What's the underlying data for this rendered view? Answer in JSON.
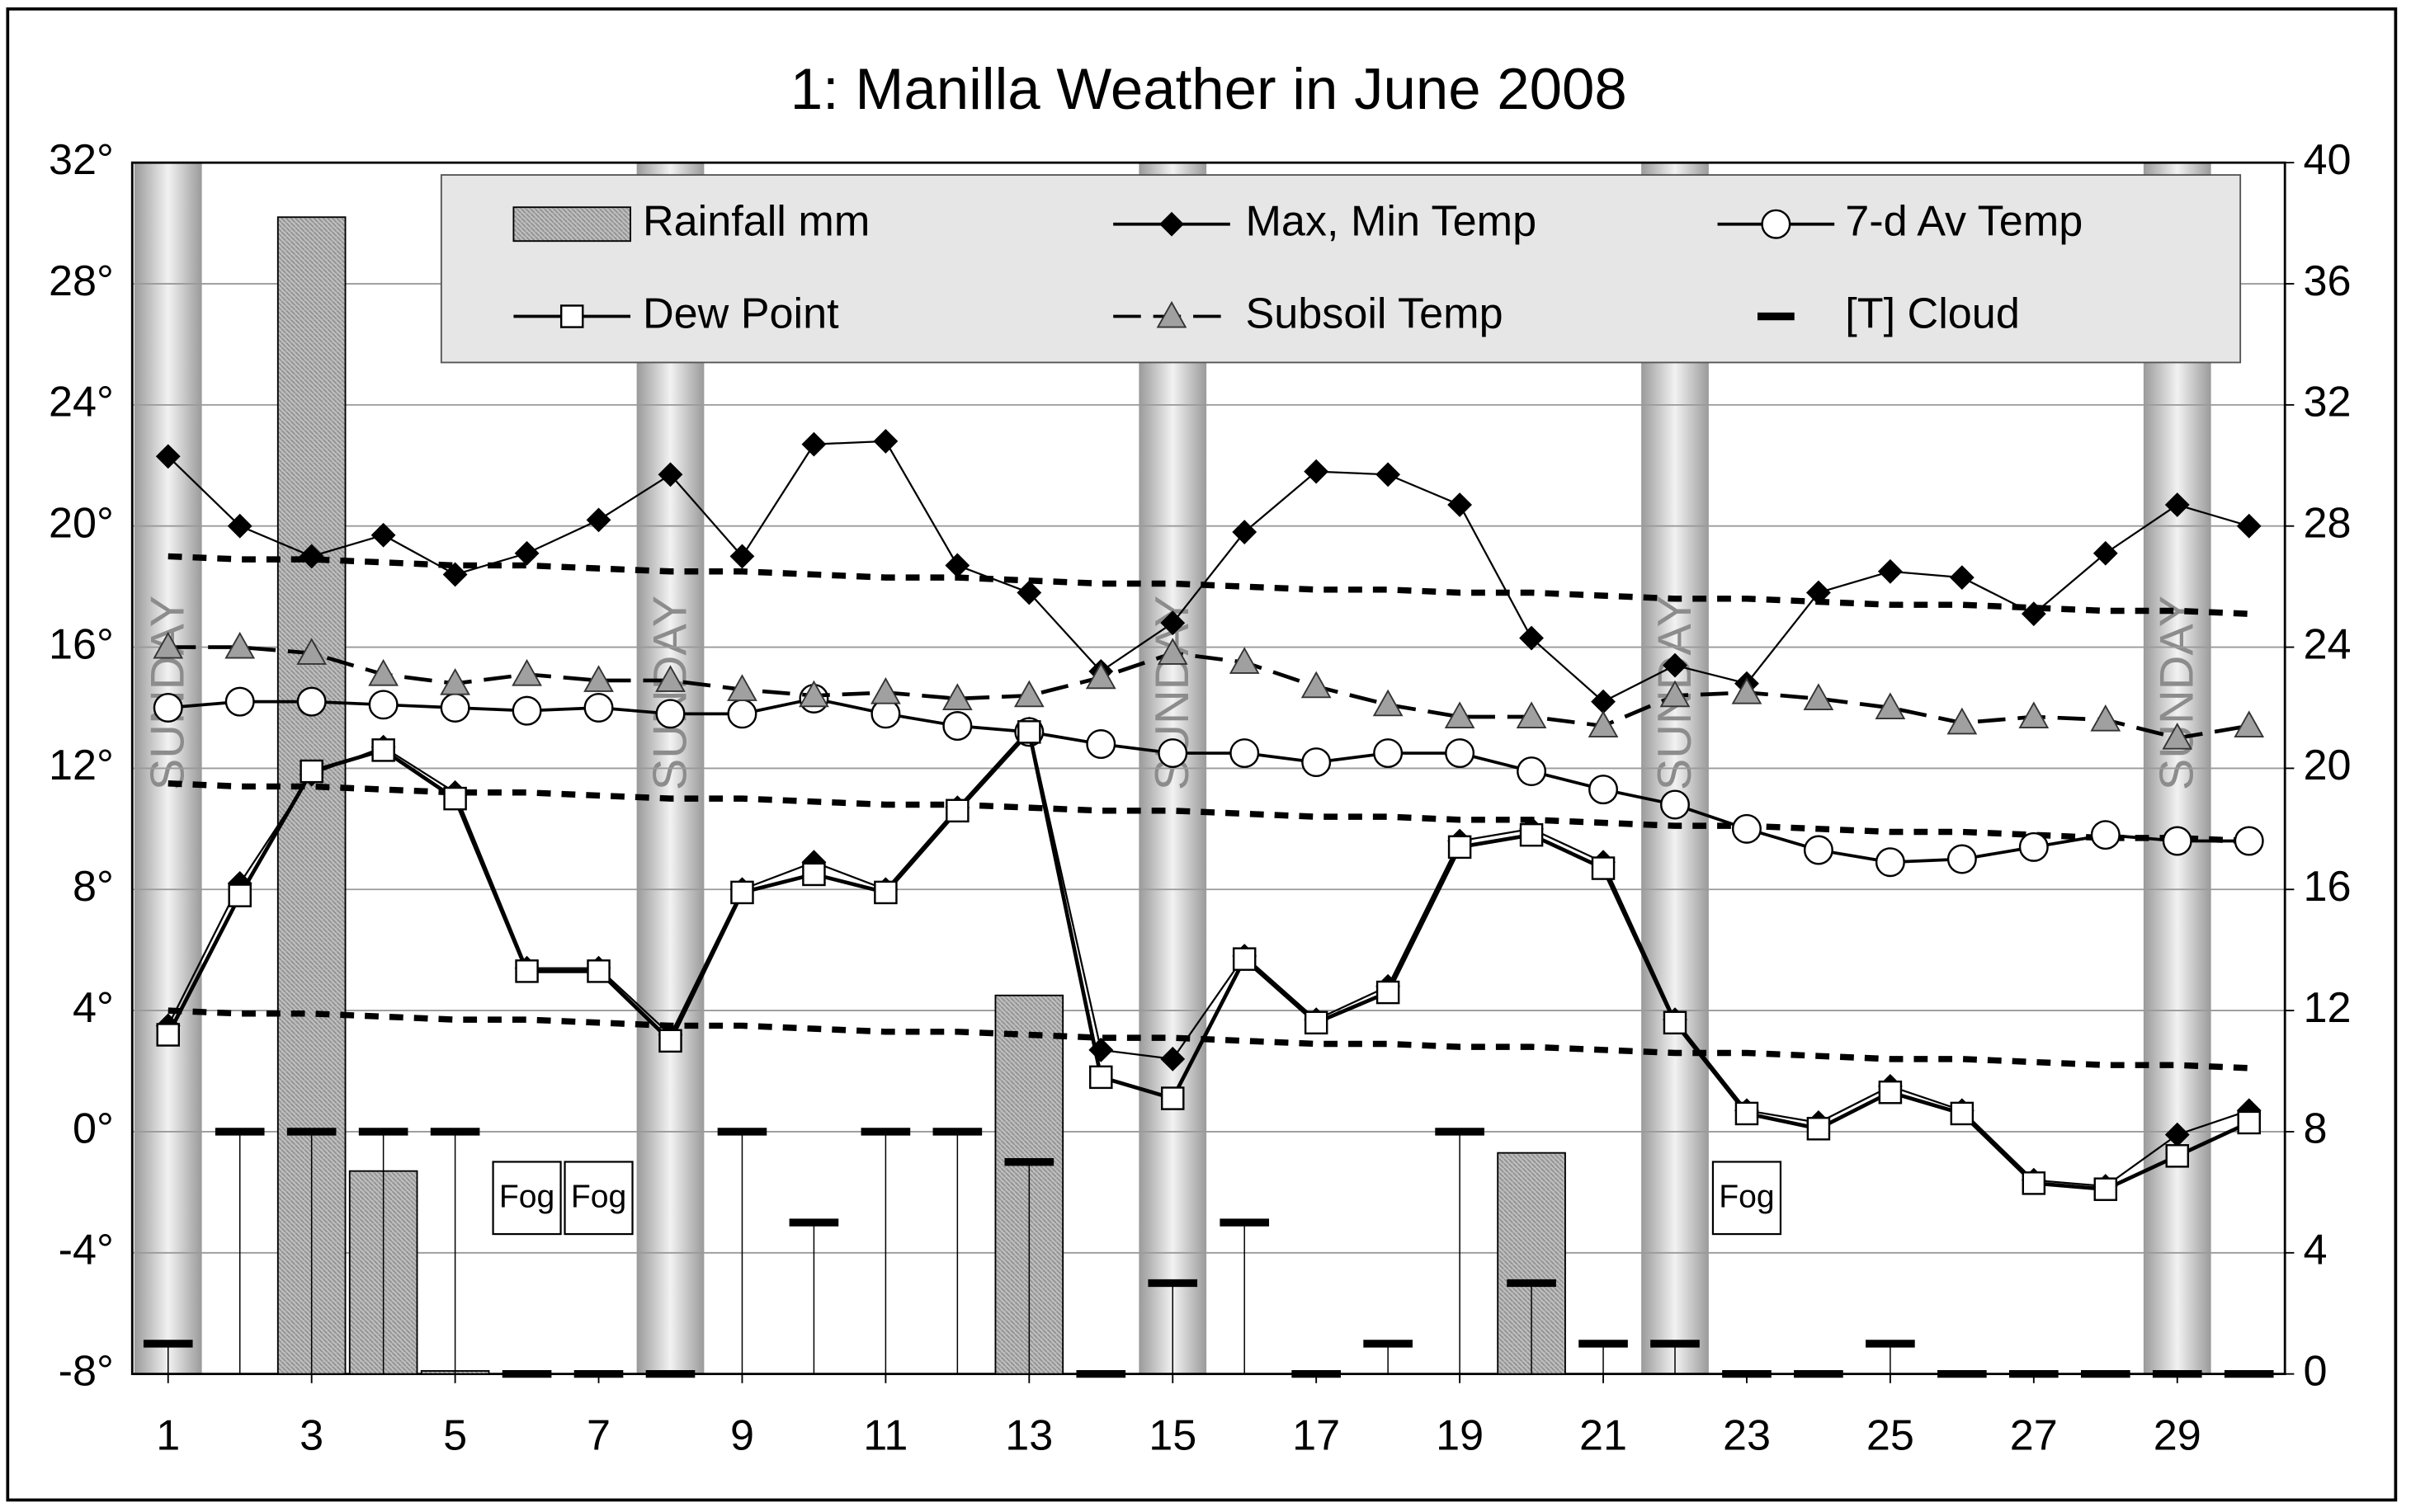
{
  "chart_data": {
    "type": "line",
    "title": "1: Manilla Weather in June 2008",
    "x": [
      1,
      2,
      3,
      4,
      5,
      6,
      7,
      8,
      9,
      10,
      11,
      12,
      13,
      14,
      15,
      16,
      17,
      18,
      19,
      20,
      21,
      22,
      23,
      24,
      25,
      26,
      27,
      28,
      29,
      30
    ],
    "xlim": [
      0.5,
      30.5
    ],
    "xticks": [
      1,
      3,
      5,
      7,
      9,
      11,
      13,
      15,
      17,
      19,
      21,
      23,
      25,
      27,
      29
    ],
    "ylim": [
      -8,
      32
    ],
    "yticks": [
      {
        "value": -8,
        "label": "-8°"
      },
      {
        "value": -4,
        "label": "-4°"
      },
      {
        "value": 0,
        "label": "0°"
      },
      {
        "value": 4,
        "label": "4°"
      },
      {
        "value": 8,
        "label": "8°"
      },
      {
        "value": 12,
        "label": "12°"
      },
      {
        "value": 16,
        "label": "16°"
      },
      {
        "value": 20,
        "label": "20°"
      },
      {
        "value": 24,
        "label": "24°"
      },
      {
        "value": 28,
        "label": "28°"
      },
      {
        "value": 32,
        "label": "32°"
      }
    ],
    "y2lim": [
      0,
      40
    ],
    "y2ticks": [
      0,
      4,
      8,
      12,
      16,
      20,
      24,
      28,
      32,
      36,
      40
    ],
    "grid": true,
    "sundays": {
      "days": [
        1,
        8,
        15,
        22,
        29
      ],
      "label": "SUNDAY"
    },
    "annotations": [
      {
        "x": 6,
        "text": "Fog"
      },
      {
        "x": 7,
        "text": "Fog"
      },
      {
        "x": 23,
        "text": "Fog"
      }
    ],
    "series": [
      {
        "name": "Rainfall mm",
        "type": "bar",
        "axis": "y2",
        "color": "#b4b4b4",
        "values": [
          0,
          0,
          38.2,
          6.7,
          0.1,
          0,
          0,
          0,
          0,
          0,
          0,
          0,
          12.5,
          0,
          0,
          0,
          0,
          0,
          0,
          7.3,
          0,
          0,
          0,
          0,
          0,
          0,
          0,
          0,
          0,
          0
        ]
      },
      {
        "name": "Max, Min Temp",
        "type": "line",
        "marker": "diamond",
        "color": "#000000",
        "values": [
          22.3,
          20.0,
          19.0,
          19.7,
          18.4,
          19.1,
          20.2,
          21.7,
          19.0,
          22.7,
          22.8,
          18.7,
          17.8,
          15.2,
          16.8,
          19.8,
          21.8,
          21.7,
          20.7,
          16.3,
          14.2,
          15.4,
          14.8,
          17.8,
          18.5,
          18.3,
          17.1,
          19.1,
          20.7,
          20.0
        ],
        "low_values": [
          3.5,
          8.2,
          11.8,
          12.7,
          11.2,
          5.4,
          5.4,
          3.2,
          8.0,
          8.9,
          8.0,
          10.7,
          13.3,
          2.7,
          2.4,
          5.8,
          3.7,
          4.8,
          9.6,
          10.0,
          8.9,
          3.7,
          0.7,
          0.3,
          1.5,
          0.7,
          -1.6,
          -1.8,
          -0.1,
          0.7
        ]
      },
      {
        "name": "7-d Av Temp",
        "type": "line",
        "marker": "circle",
        "color": "#000000",
        "values": [
          14.0,
          14.2,
          14.2,
          14.1,
          14.0,
          13.9,
          14.0,
          13.8,
          13.8,
          14.3,
          13.8,
          13.4,
          13.2,
          12.8,
          12.5,
          12.5,
          12.2,
          12.5,
          12.5,
          11.9,
          11.3,
          10.8,
          10.0,
          9.3,
          8.9,
          9.0,
          9.4,
          9.8,
          9.6,
          9.6
        ]
      },
      {
        "name": "Dew Point",
        "type": "line",
        "marker": "square",
        "color": "#000000",
        "values": [
          3.2,
          7.8,
          11.9,
          12.6,
          11.0,
          5.3,
          5.3,
          3.0,
          7.9,
          8.5,
          7.9,
          10.6,
          13.2,
          1.8,
          1.1,
          5.7,
          3.6,
          4.6,
          9.4,
          9.8,
          8.7,
          3.6,
          0.6,
          0.1,
          1.3,
          0.6,
          -1.7,
          -1.9,
          -0.8,
          0.3
        ]
      },
      {
        "name": "Subsoil Temp",
        "type": "line",
        "marker": "triangle",
        "dashed": true,
        "color": "#000000",
        "marker_color": "#a0a0a0",
        "values": [
          16.0,
          16.0,
          15.8,
          15.1,
          14.8,
          15.1,
          14.9,
          14.9,
          14.6,
          14.4,
          14.5,
          14.3,
          14.4,
          15.0,
          15.8,
          15.5,
          14.7,
          14.1,
          13.7,
          13.7,
          13.4,
          14.4,
          14.5,
          14.3,
          14.0,
          13.5,
          13.7,
          13.6,
          13.0,
          13.4
        ]
      },
      {
        "name": "[T] Cloud",
        "type": "dash",
        "axis": "y2",
        "color": "#000000",
        "values": [
          1,
          8,
          8,
          8,
          8,
          0,
          0,
          0,
          8,
          5,
          8,
          8,
          7,
          0,
          3,
          5,
          0,
          1,
          8,
          3,
          1,
          1,
          0,
          0,
          1,
          0,
          0,
          0,
          0,
          0
        ]
      },
      {
        "type": "dotted",
        "color": "#000000",
        "values": [
          19.0,
          18.9,
          18.9,
          18.8,
          18.7,
          18.7,
          18.6,
          18.5,
          18.5,
          18.4,
          18.3,
          18.3,
          18.2,
          18.1,
          18.1,
          18.0,
          17.9,
          17.9,
          17.8,
          17.8,
          17.7,
          17.6,
          17.6,
          17.5,
          17.4,
          17.4,
          17.3,
          17.2,
          17.2,
          17.1
        ]
      },
      {
        "type": "dotted",
        "color": "#000000",
        "values": [
          11.5,
          11.4,
          11.4,
          11.3,
          11.2,
          11.2,
          11.1,
          11.0,
          11.0,
          10.9,
          10.8,
          10.8,
          10.7,
          10.6,
          10.6,
          10.5,
          10.4,
          10.4,
          10.3,
          10.3,
          10.2,
          10.1,
          10.1,
          10.0,
          9.9,
          9.9,
          9.8,
          9.7,
          9.7,
          9.6
        ]
      },
      {
        "type": "dotted",
        "color": "#000000",
        "values": [
          4.0,
          3.9,
          3.9,
          3.8,
          3.7,
          3.7,
          3.6,
          3.5,
          3.5,
          3.4,
          3.3,
          3.3,
          3.2,
          3.1,
          3.1,
          3.0,
          2.9,
          2.9,
          2.8,
          2.8,
          2.7,
          2.6,
          2.6,
          2.5,
          2.4,
          2.4,
          2.3,
          2.2,
          2.2,
          2.1
        ]
      }
    ]
  }
}
